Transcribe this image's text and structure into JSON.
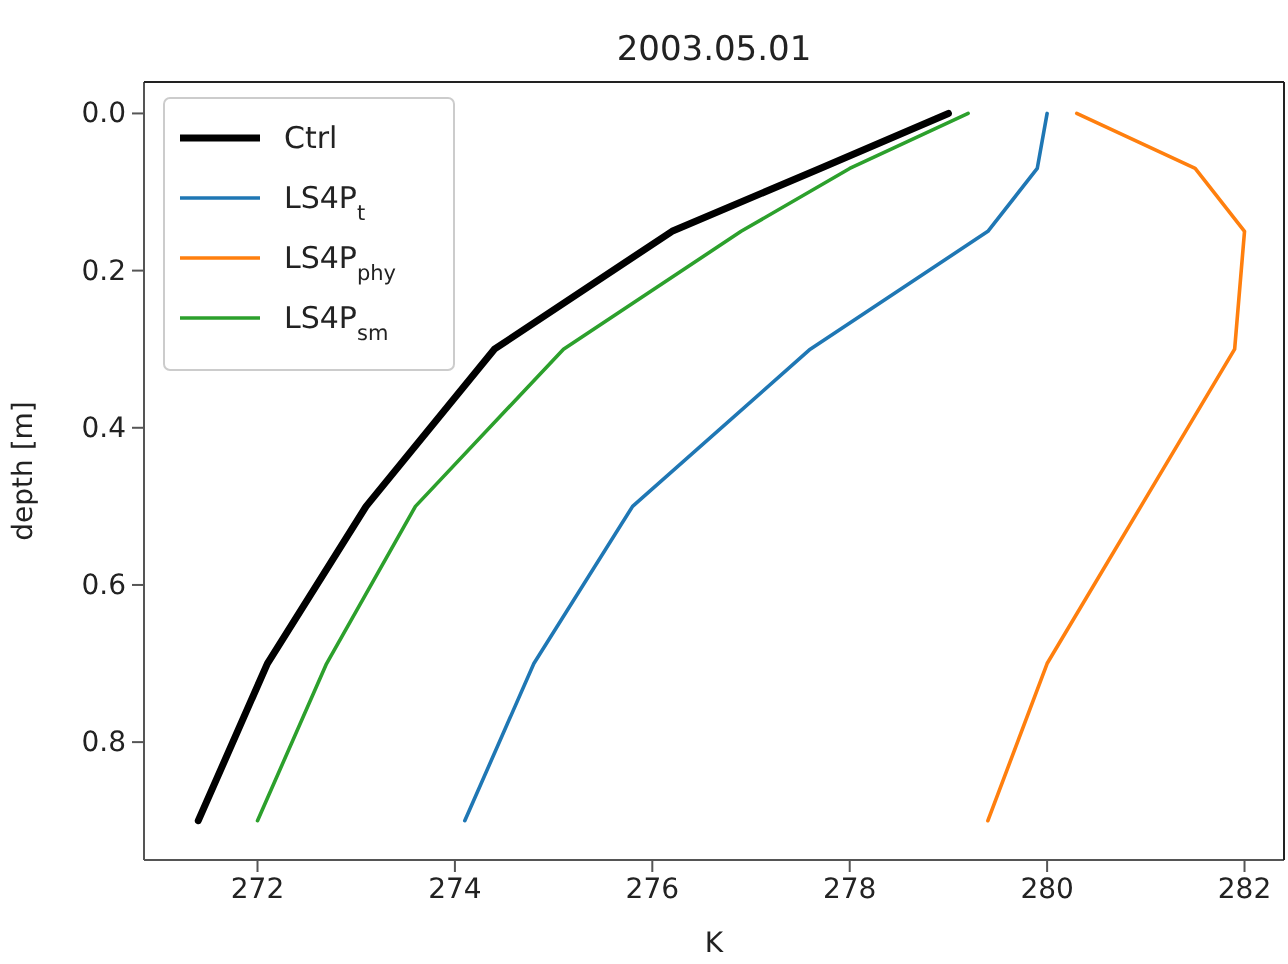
{
  "chart_data": {
    "type": "line",
    "title": "2003.05.01",
    "xlabel": "K",
    "ylabel": "depth [m]",
    "xlim": [
      270.85,
      282.4
    ],
    "ylim": [
      0.95,
      -0.04
    ],
    "xticks": [
      272,
      274,
      276,
      278,
      280,
      282
    ],
    "yticks": [
      {
        "value": 0,
        "label": "0.0"
      },
      {
        "value": 0.2,
        "label": "0.2"
      },
      {
        "value": 0.4,
        "label": "0.4"
      },
      {
        "value": 0.6,
        "label": "0.6"
      },
      {
        "value": 0.8,
        "label": "0.8"
      }
    ],
    "grid": false,
    "legend": "top left",
    "series": [
      {
        "name": "Ctrl",
        "color": "#000000",
        "x": [
          279.0,
          277.7,
          276.2,
          274.4,
          273.1,
          272.1,
          271.4
        ],
        "values": [
          0,
          0.07,
          0.15,
          0.3,
          0.5,
          0.7,
          0.9
        ]
      },
      {
        "name": "LS4P$_{t}$",
        "color": "#1f77b4",
        "x": [
          280.0,
          279.9,
          279.4,
          277.6,
          275.8,
          274.8,
          274.1
        ],
        "values": [
          0,
          0.07,
          0.15,
          0.3,
          0.5,
          0.7,
          0.9
        ]
      },
      {
        "name": "LS4P$_{phy}$",
        "color": "#ff7f0e",
        "x": [
          280.3,
          281.5,
          282.0,
          281.9,
          280.95,
          280.0,
          279.4
        ],
        "values": [
          0,
          0.07,
          0.15,
          0.3,
          0.5,
          0.7,
          0.9
        ]
      },
      {
        "name": "LS4P$_{sm}$",
        "color": "#2ca02c",
        "x": [
          279.2,
          278.0,
          276.9,
          275.1,
          273.6,
          272.7,
          272.0
        ],
        "values": [
          0,
          0.07,
          0.15,
          0.3,
          0.5,
          0.7,
          0.9
        ]
      }
    ]
  }
}
